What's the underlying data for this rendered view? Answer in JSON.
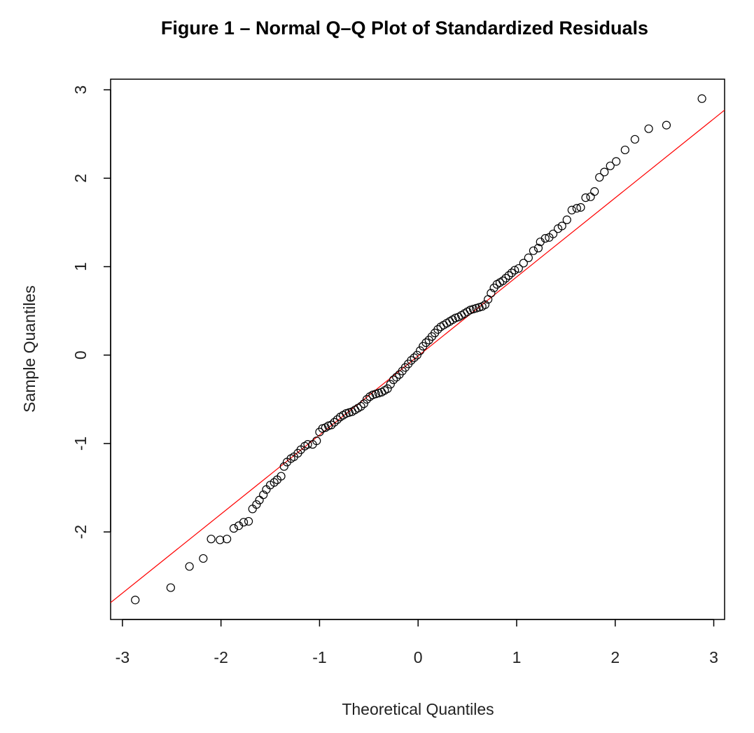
{
  "chart_data": {
    "type": "scatter",
    "title": "Figure 1 – Normal Q–Q Plot of Standardized Residuals",
    "xlabel": "Theoretical Quantiles",
    "ylabel": "Sample Quantiles",
    "xlim": [
      -3.12,
      3.11
    ],
    "ylim": [
      -2.99,
      3.12
    ],
    "xticks": [
      -3,
      -2,
      -1,
      0,
      1,
      2,
      3
    ],
    "yticks": [
      -2,
      -1,
      0,
      1,
      2,
      3
    ],
    "color": "#000000",
    "reference_line": {
      "intercept": -0.01,
      "slope": 0.894,
      "color": "#ff0000"
    },
    "x": [
      -2.87,
      -2.51,
      -2.32,
      -2.18,
      -2.1,
      -2.01,
      -1.94,
      -1.87,
      -1.82,
      -1.77,
      -1.72,
      -1.68,
      -1.64,
      -1.61,
      -1.57,
      -1.54,
      -1.5,
      -1.46,
      -1.43,
      -1.39,
      -1.36,
      -1.33,
      -1.29,
      -1.26,
      -1.22,
      -1.19,
      -1.15,
      -1.12,
      -1.07,
      -1.03,
      -1.0,
      -0.97,
      -0.94,
      -0.91,
      -0.88,
      -0.85,
      -0.82,
      -0.79,
      -0.76,
      -0.73,
      -0.7,
      -0.67,
      -0.64,
      -0.61,
      -0.58,
      -0.55,
      -0.52,
      -0.49,
      -0.46,
      -0.43,
      -0.4,
      -0.37,
      -0.34,
      -0.31,
      -0.28,
      -0.25,
      -0.22,
      -0.19,
      -0.16,
      -0.13,
      -0.1,
      -0.07,
      -0.04,
      -0.01,
      0.02,
      0.05,
      0.08,
      0.11,
      0.14,
      0.17,
      0.2,
      0.23,
      0.26,
      0.29,
      0.32,
      0.35,
      0.38,
      0.41,
      0.44,
      0.47,
      0.5,
      0.53,
      0.56,
      0.59,
      0.62,
      0.65,
      0.68,
      0.71,
      0.74,
      0.77,
      0.8,
      0.83,
      0.86,
      0.89,
      0.92,
      0.95,
      0.98,
      1.02,
      1.07,
      1.12,
      1.17,
      1.22,
      1.24,
      1.29,
      1.33,
      1.37,
      1.42,
      1.46,
      1.51,
      1.56,
      1.61,
      1.65,
      1.7,
      1.75,
      1.79,
      1.84,
      1.89,
      1.95,
      2.01,
      2.1,
      2.2,
      2.34,
      2.52,
      2.88
    ],
    "y": [
      -2.77,
      -2.63,
      -2.39,
      -2.3,
      -2.08,
      -2.09,
      -2.08,
      -1.96,
      -1.93,
      -1.89,
      -1.88,
      -1.74,
      -1.69,
      -1.64,
      -1.58,
      -1.52,
      -1.47,
      -1.44,
      -1.41,
      -1.37,
      -1.26,
      -1.21,
      -1.17,
      -1.15,
      -1.11,
      -1.07,
      -1.03,
      -1.01,
      -1.01,
      -0.97,
      -0.87,
      -0.83,
      -0.82,
      -0.8,
      -0.79,
      -0.76,
      -0.73,
      -0.7,
      -0.68,
      -0.66,
      -0.65,
      -0.64,
      -0.62,
      -0.6,
      -0.58,
      -0.55,
      -0.5,
      -0.47,
      -0.45,
      -0.44,
      -0.43,
      -0.42,
      -0.4,
      -0.38,
      -0.33,
      -0.28,
      -0.25,
      -0.22,
      -0.18,
      -0.14,
      -0.1,
      -0.06,
      -0.03,
      0.0,
      0.05,
      0.1,
      0.14,
      0.17,
      0.21,
      0.25,
      0.29,
      0.32,
      0.34,
      0.36,
      0.38,
      0.4,
      0.42,
      0.43,
      0.45,
      0.47,
      0.49,
      0.51,
      0.52,
      0.53,
      0.54,
      0.55,
      0.57,
      0.63,
      0.7,
      0.76,
      0.8,
      0.82,
      0.84,
      0.87,
      0.9,
      0.93,
      0.96,
      0.98,
      1.04,
      1.1,
      1.18,
      1.21,
      1.28,
      1.32,
      1.33,
      1.37,
      1.43,
      1.46,
      1.53,
      1.64,
      1.66,
      1.67,
      1.78,
      1.79,
      1.85,
      2.01,
      2.07,
      2.14,
      2.19,
      2.32,
      2.44,
      2.56,
      2.6,
      2.9
    ]
  }
}
